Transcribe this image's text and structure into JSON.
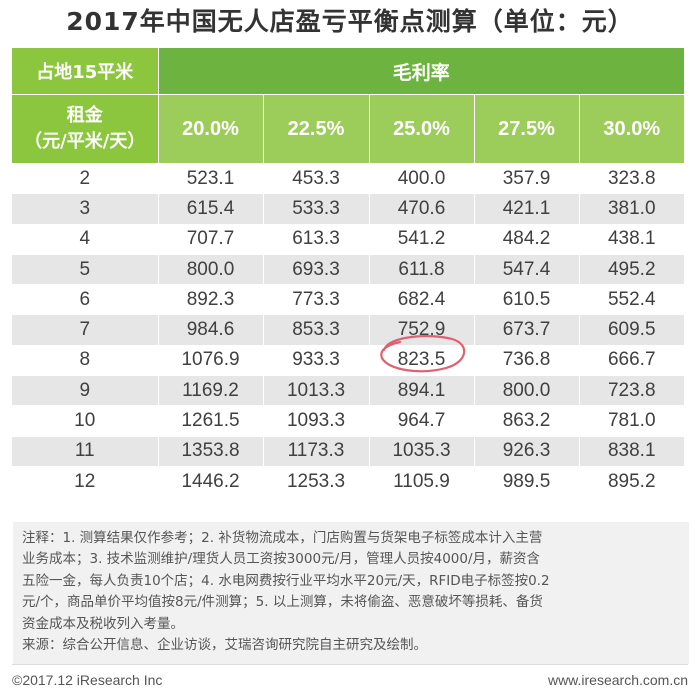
{
  "title": "2017年中国无人店盈亏平衡点测算（单位：元）",
  "table": {
    "corner_label": "占地15平米",
    "group_label": "毛利率",
    "rent_label_line1": "租金",
    "rent_label_line2": "（元/平米/天）",
    "rates": [
      "20.0%",
      "22.5%",
      "25.0%",
      "27.5%",
      "30.0%"
    ],
    "rows": [
      {
        "rent": "2",
        "values": [
          "523.1",
          "453.3",
          "400.0",
          "357.9",
          "323.8"
        ]
      },
      {
        "rent": "3",
        "values": [
          "615.4",
          "533.3",
          "470.6",
          "421.1",
          "381.0"
        ]
      },
      {
        "rent": "4",
        "values": [
          "707.7",
          "613.3",
          "541.2",
          "484.2",
          "438.1"
        ]
      },
      {
        "rent": "5",
        "values": [
          "800.0",
          "693.3",
          "611.8",
          "547.4",
          "495.2"
        ]
      },
      {
        "rent": "6",
        "values": [
          "892.3",
          "773.3",
          "682.4",
          "610.5",
          "552.4"
        ]
      },
      {
        "rent": "7",
        "values": [
          "984.6",
          "853.3",
          "752.9",
          "673.7",
          "609.5"
        ]
      },
      {
        "rent": "8",
        "values": [
          "1076.9",
          "933.3",
          "823.5",
          "736.8",
          "666.7"
        ]
      },
      {
        "rent": "9",
        "values": [
          "1169.2",
          "1013.3",
          "894.1",
          "800.0",
          "723.8"
        ]
      },
      {
        "rent": "10",
        "values": [
          "1261.5",
          "1093.3",
          "964.7",
          "863.2",
          "781.0"
        ]
      },
      {
        "rent": "11",
        "values": [
          "1353.8",
          "1173.3",
          "1035.3",
          "926.3",
          "838.1"
        ]
      },
      {
        "rent": "12",
        "values": [
          "1446.2",
          "1253.3",
          "1105.9",
          "989.5",
          "895.2"
        ]
      }
    ]
  },
  "notes": {
    "line1": "注释：1. 测算结果仅作参考；2. 补货物流成本，门店购置与货架电子标签成本计入主营",
    "line2": "业务成本；3. 技术监测维护/理货人员工资按3000元/月，管理人员按4000/月，薪资含",
    "line3": "五险一金，每人负责10个店；4. 水电网费按行业平均水平20元/天，RFID电子标签按0.2",
    "line4": "元/个，商品单价平均值按8元/件测算；5. 以上测算，未将偷盗、恶意破坏等损耗、备货",
    "line5": "资金成本及税收列入考量。",
    "source": "来源：综合公开信息、企业访谈，艾瑞咨询研究院自主研究及绘制。"
  },
  "footer": {
    "copyright": "©2017.12 iResearch Inc",
    "website": "www.iresearch.com.cn"
  },
  "colors": {
    "header_dark_green": "#6db33f",
    "header_light_green": "#8cc63f",
    "rate_green": "#9ccd5a",
    "row_gray": "#e6e6e6",
    "highlight_circle": "#e06070"
  }
}
